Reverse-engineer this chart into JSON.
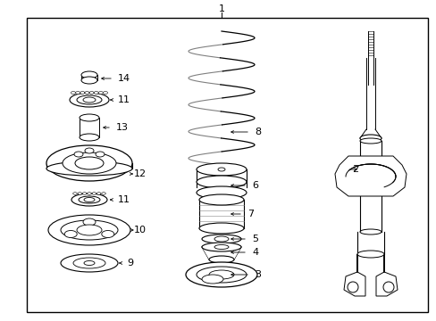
{
  "bg_color": "#ffffff",
  "border_color": "#000000",
  "line_color": "#000000",
  "label_color": "#000000",
  "fig_w": 4.89,
  "fig_h": 3.6,
  "dpi": 100
}
